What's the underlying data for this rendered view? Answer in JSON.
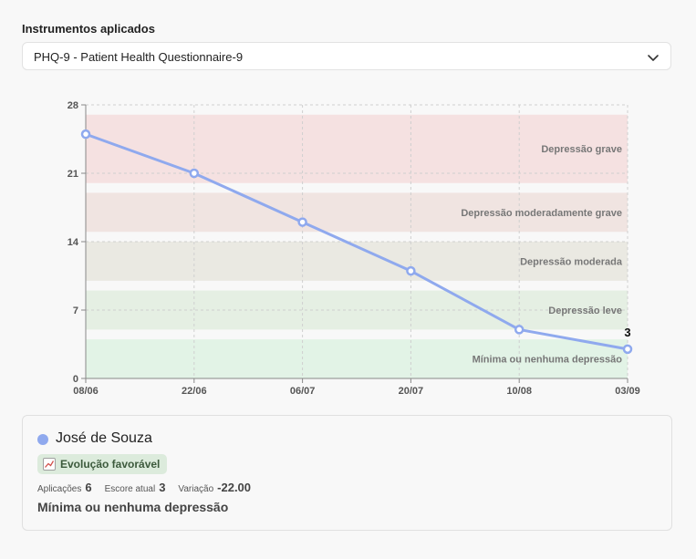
{
  "section": {
    "label": "Instrumentos aplicados"
  },
  "instrument_select": {
    "value": "PHQ-9 - Patient Health Questionnaire-9",
    "icon": "chevron-down-icon"
  },
  "chart_data": {
    "type": "line",
    "x": [
      "08/06",
      "22/06",
      "06/07",
      "20/07",
      "10/08",
      "03/09"
    ],
    "series": [
      {
        "values": [
          25,
          21,
          16,
          11,
          5,
          3
        ],
        "color": "#8fa9ee"
      }
    ],
    "last_point_label": "3",
    "ylim": [
      0,
      28
    ],
    "yticks": [
      0,
      7,
      14,
      21,
      28
    ],
    "grid": true,
    "bands": [
      {
        "label": "Mínima ou nenhuma depressão",
        "from": 0,
        "to": 4,
        "color": "#e2f3e6"
      },
      {
        "label": "Depressão leve",
        "from": 5,
        "to": 9,
        "color": "#e5efe3"
      },
      {
        "label": "Depressão moderada",
        "from": 10,
        "to": 14,
        "color": "#eae9e2"
      },
      {
        "label": "Depressão moderadamente grave",
        "from": 15,
        "to": 19,
        "color": "#f0e4e1"
      },
      {
        "label": "Depressão grave",
        "from": 20,
        "to": 27,
        "color": "#f5e1e1"
      }
    ]
  },
  "summary": {
    "patient_name": "José de Souza",
    "patient_color": "#8fa9ee",
    "badge_icon": "chart-trend-icon",
    "badge_text": "Evolução favorável",
    "applications_label": "Aplicações",
    "applications_value": "6",
    "current_score_label": "Escore atual",
    "current_score_value": "3",
    "variation_label": "Variação",
    "variation_value": "-22.00",
    "classification": "Mínima ou nenhuma depressão"
  }
}
